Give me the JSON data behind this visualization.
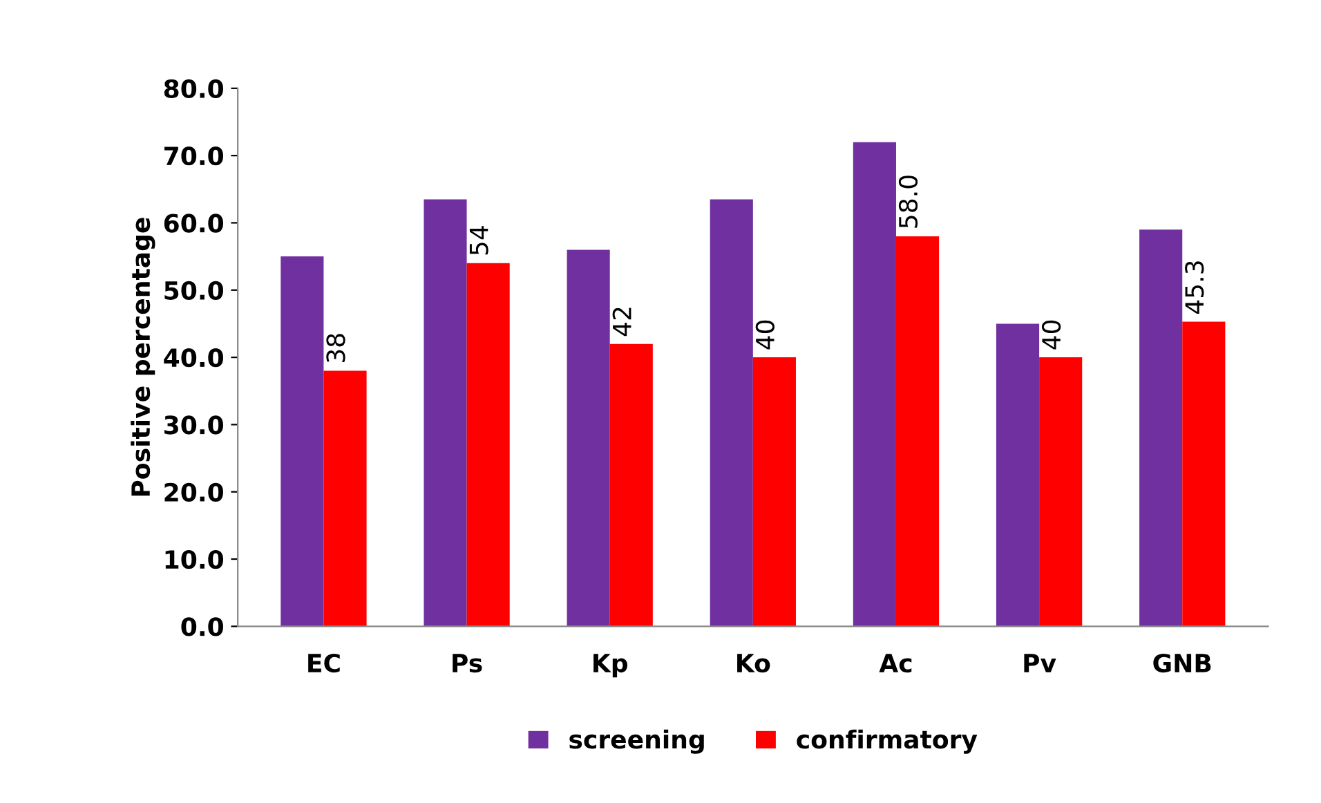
{
  "chart_data": {
    "type": "bar",
    "ylabel": "Positive percentage",
    "categories": [
      "EC",
      "Ps",
      "Kp",
      "Ko",
      "Ac",
      "Pv",
      "GNB"
    ],
    "series": [
      {
        "name": "screening",
        "color": "#7030a0",
        "values": [
          55,
          63.5,
          56,
          63.5,
          72,
          45,
          59
        ]
      },
      {
        "name": "confirmatory",
        "color": "#ff0000",
        "values": [
          38,
          54,
          42,
          40,
          58,
          40,
          45.3
        ],
        "value_labels": [
          "38",
          "54",
          "42",
          "40",
          "58.0",
          "40",
          "45.3"
        ]
      }
    ],
    "ylim": [
      0,
      80
    ],
    "yticks": [
      {
        "value": 0,
        "label": "0.0"
      },
      {
        "value": 10,
        "label": "10.0"
      },
      {
        "value": 20,
        "label": "20.0"
      },
      {
        "value": 30,
        "label": "30.0"
      },
      {
        "value": 40,
        "label": "40.0"
      },
      {
        "value": 50,
        "label": "50.0"
      },
      {
        "value": 60,
        "label": "60.0"
      },
      {
        "value": 70,
        "label": "70.0"
      },
      {
        "value": 80,
        "label": "80.0"
      }
    ],
    "grid": false,
    "legend": "bottom"
  }
}
